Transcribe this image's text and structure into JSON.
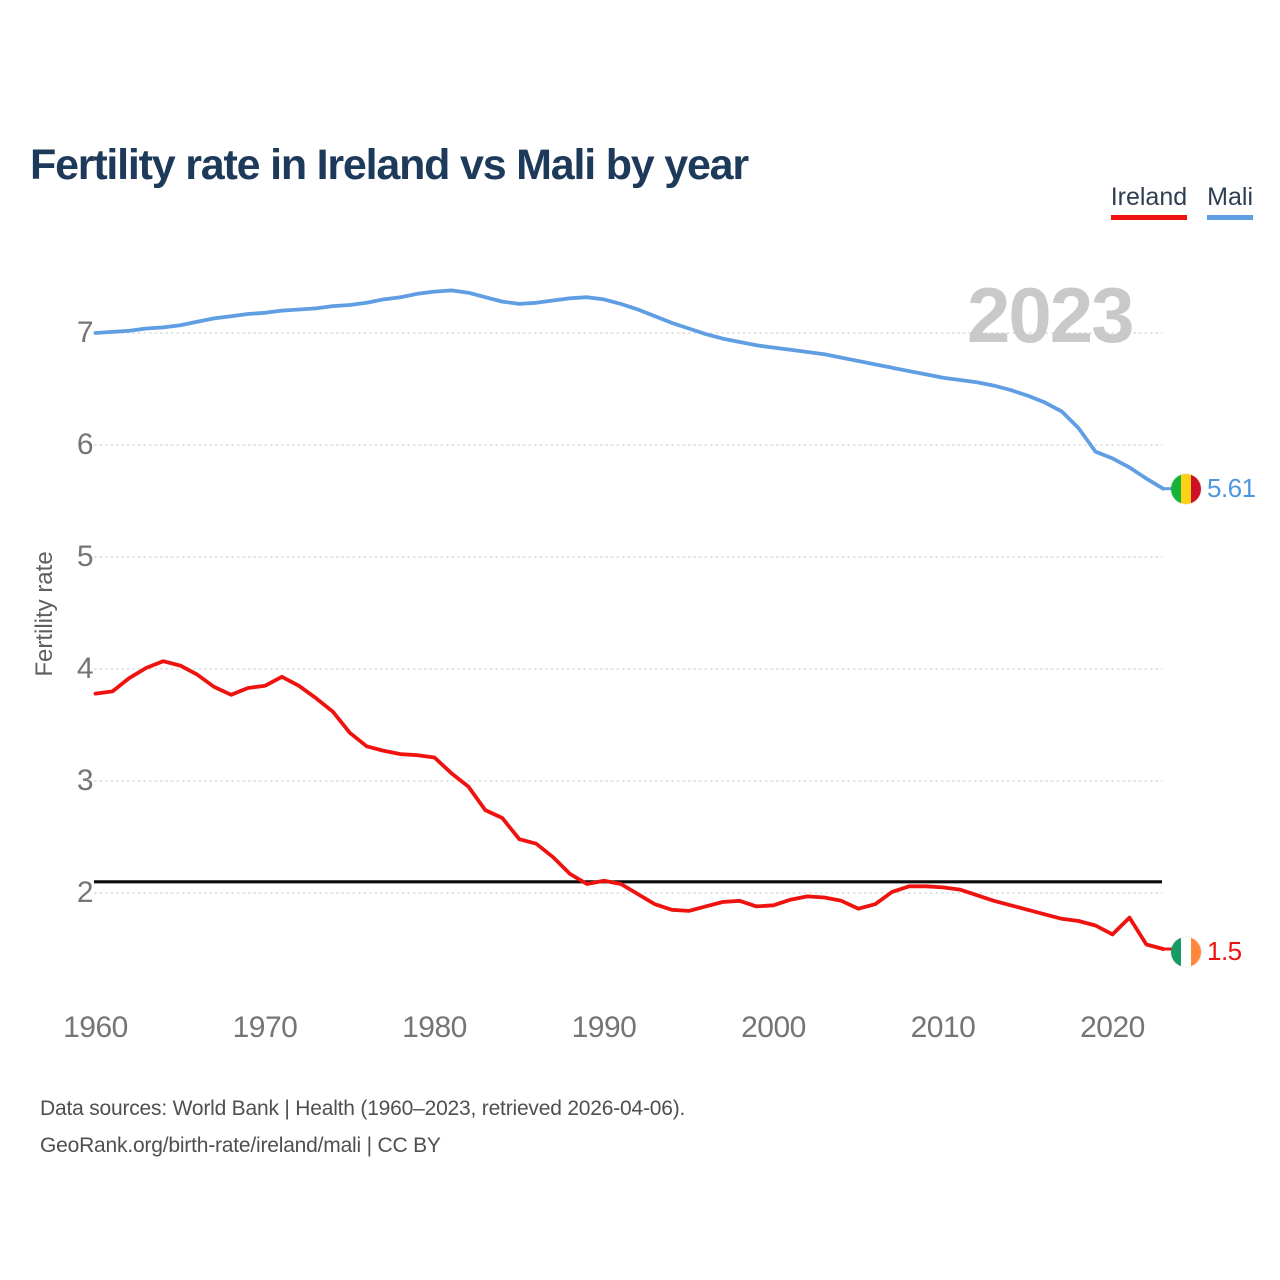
{
  "header": {
    "title": "Fertility rate in Ireland vs Mali by year"
  },
  "legend": {
    "items": [
      {
        "label": "Ireland",
        "color": "#ef1310"
      },
      {
        "label": "Mali",
        "color": "#609ee4"
      }
    ]
  },
  "chart": {
    "watermark": "2023",
    "y_axis_label": "Fertility rate",
    "end_labels": {
      "mali": "5.61",
      "ireland": "1.5"
    },
    "flag_icons": {
      "mali": [
        "#14b53a",
        "#fcd116",
        "#ce1126"
      ],
      "ireland": [
        "#169b62",
        "#ffffff",
        "#ff883e"
      ]
    }
  },
  "footer": {
    "line1": "Data sources: World Bank | Health (1960–2023, retrieved 2026-04-06).",
    "line2": "GeoRank.org/birth-rate/ireland/mali | CC BY"
  },
  "chart_data": {
    "type": "line",
    "title": "Fertility rate in Ireland vs Mali by year",
    "xlabel": "",
    "ylabel": "Fertility rate",
    "xlim": [
      1960,
      2023
    ],
    "ylim": [
      1.3,
      7.6
    ],
    "grid": true,
    "legend_position": "top-right",
    "reference_line": 2.1,
    "yticks": [
      7,
      6,
      5,
      4,
      3,
      2
    ],
    "xticks": [
      1960,
      1970,
      1980,
      1990,
      2000,
      2010,
      2020
    ],
    "x": [
      1960,
      1961,
      1962,
      1963,
      1964,
      1965,
      1966,
      1967,
      1968,
      1969,
      1970,
      1971,
      1972,
      1973,
      1974,
      1975,
      1976,
      1977,
      1978,
      1979,
      1980,
      1981,
      1982,
      1983,
      1984,
      1985,
      1986,
      1987,
      1988,
      1989,
      1990,
      1991,
      1992,
      1993,
      1994,
      1995,
      1996,
      1997,
      1998,
      1999,
      2000,
      2001,
      2002,
      2003,
      2004,
      2005,
      2006,
      2007,
      2008,
      2009,
      2010,
      2011,
      2012,
      2013,
      2014,
      2015,
      2016,
      2017,
      2018,
      2019,
      2020,
      2021,
      2022,
      2023
    ],
    "series": [
      {
        "name": "Ireland",
        "color": "#ef1310",
        "end_label": "1.5",
        "values": [
          3.78,
          3.8,
          3.92,
          4.01,
          4.07,
          4.03,
          3.95,
          3.84,
          3.77,
          3.83,
          3.85,
          3.93,
          3.85,
          3.74,
          3.62,
          3.43,
          3.31,
          3.27,
          3.24,
          3.23,
          3.21,
          3.07,
          2.95,
          2.74,
          2.67,
          2.48,
          2.44,
          2.32,
          2.17,
          2.08,
          2.11,
          2.08,
          1.99,
          1.9,
          1.85,
          1.84,
          1.88,
          1.92,
          1.93,
          1.88,
          1.89,
          1.94,
          1.97,
          1.96,
          1.93,
          1.86,
          1.9,
          2.01,
          2.06,
          2.06,
          2.05,
          2.03,
          1.98,
          1.93,
          1.89,
          1.85,
          1.81,
          1.77,
          1.75,
          1.71,
          1.63,
          1.78,
          1.54,
          1.5
        ]
      },
      {
        "name": "Mali",
        "color": "#609ee4",
        "end_label": "5.61",
        "values": [
          7.0,
          7.01,
          7.02,
          7.04,
          7.05,
          7.07,
          7.1,
          7.13,
          7.15,
          7.17,
          7.18,
          7.2,
          7.21,
          7.22,
          7.24,
          7.25,
          7.27,
          7.3,
          7.32,
          7.35,
          7.37,
          7.38,
          7.36,
          7.32,
          7.28,
          7.26,
          7.27,
          7.29,
          7.31,
          7.32,
          7.3,
          7.26,
          7.21,
          7.15,
          7.09,
          7.04,
          6.99,
          6.95,
          6.92,
          6.89,
          6.87,
          6.85,
          6.83,
          6.81,
          6.78,
          6.75,
          6.72,
          6.69,
          6.66,
          6.63,
          6.6,
          6.58,
          6.56,
          6.53,
          6.49,
          6.44,
          6.38,
          6.3,
          6.15,
          5.94,
          5.88,
          5.8,
          5.7,
          5.61
        ]
      }
    ]
  }
}
